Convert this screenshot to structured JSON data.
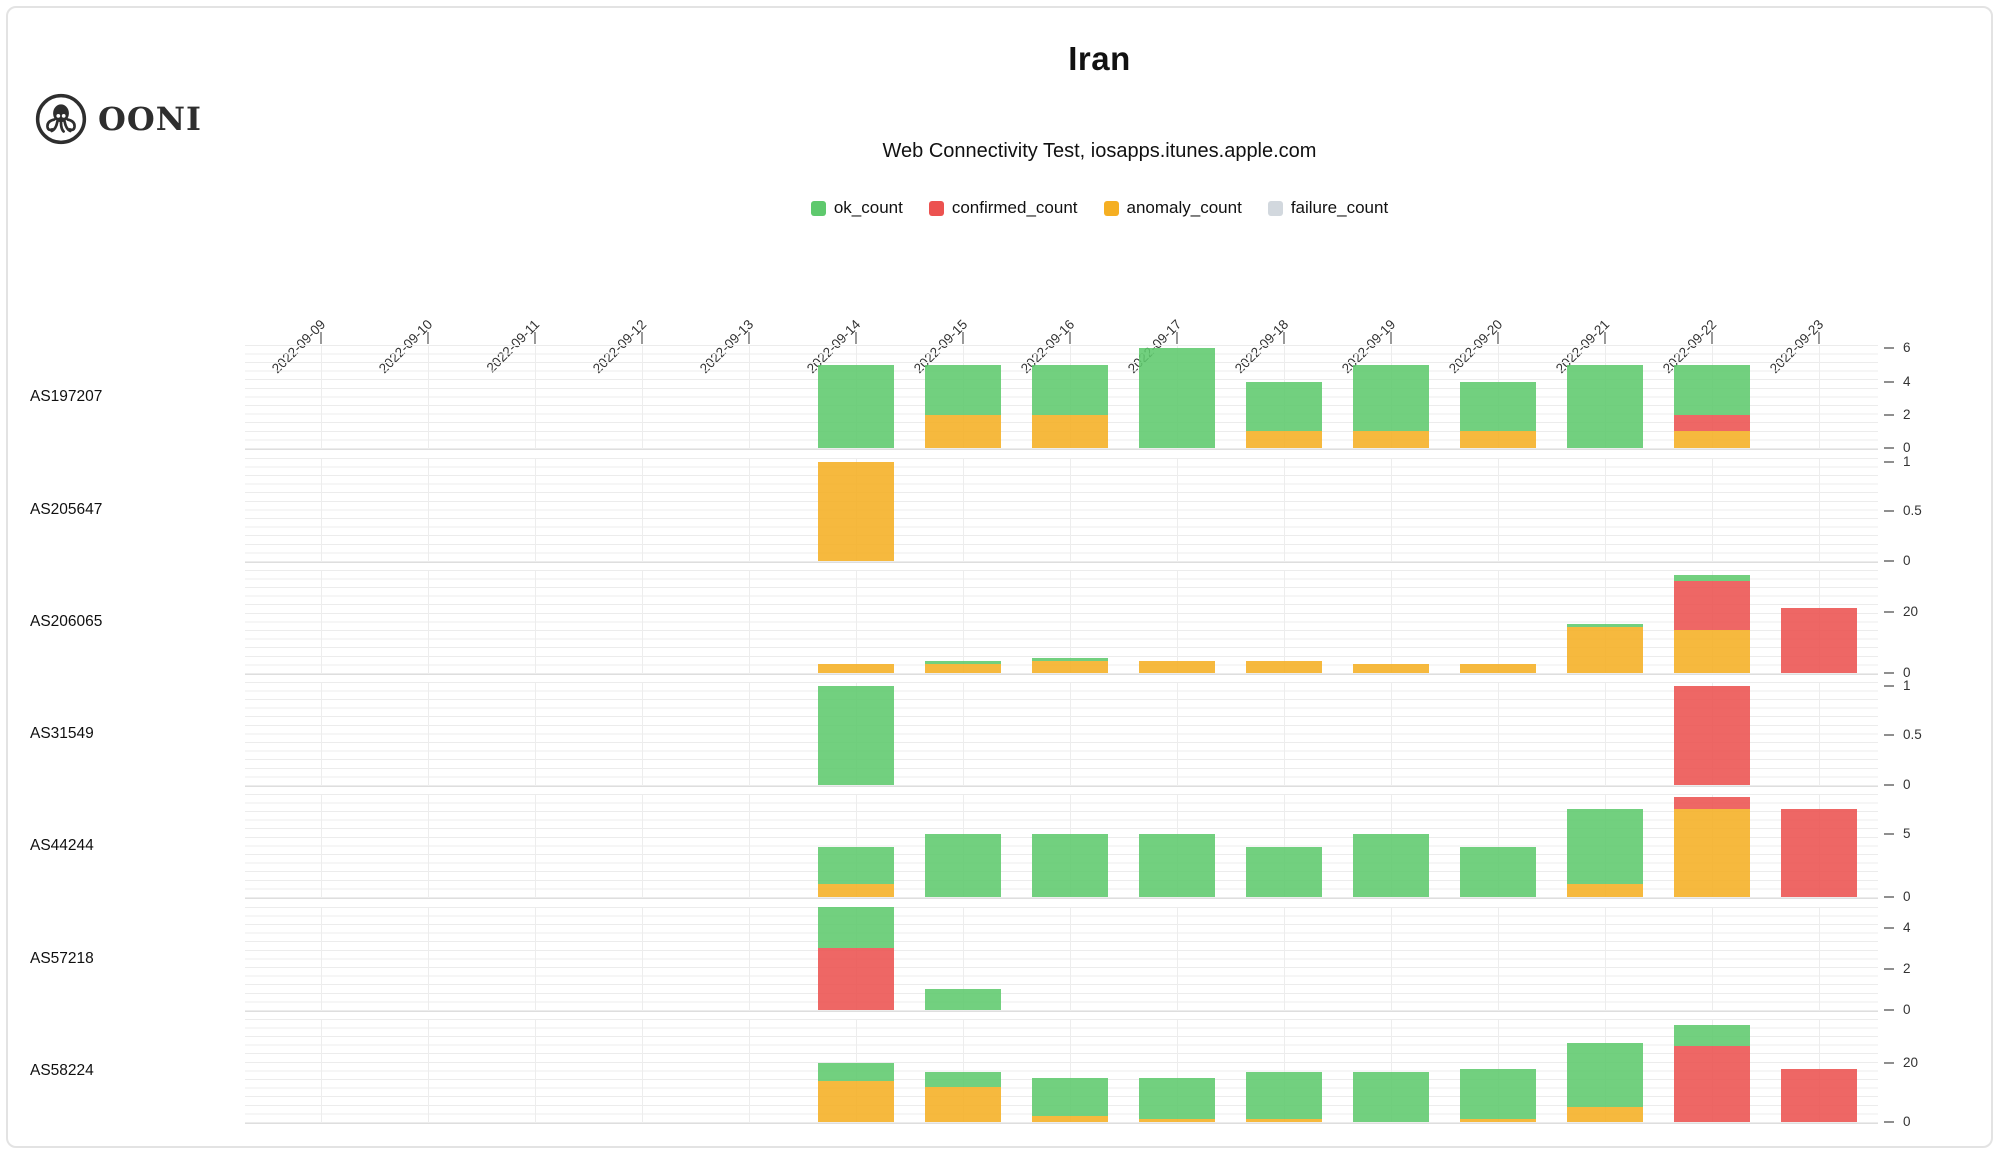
{
  "header": {
    "logo_text": "OONI",
    "title": "Iran",
    "subtitle": "Web Connectivity Test, iosapps.itunes.apple.com"
  },
  "legend": {
    "items": [
      {
        "label": "ok_count",
        "color": "#5ec96d"
      },
      {
        "label": "confirmed_count",
        "color": "#ec5250"
      },
      {
        "label": "anomaly_count",
        "color": "#f5af23"
      },
      {
        "label": "failure_count",
        "color": "#d2d8de"
      }
    ]
  },
  "chart_data": {
    "type": "bar",
    "stacked": true,
    "stack_order_bottom_to_top": [
      "anomaly",
      "confirmed",
      "ok",
      "failure"
    ],
    "title": "Iran",
    "subtitle": "Web Connectivity Test, iosapps.itunes.apple.com",
    "grid": true,
    "legend_position": "top-center",
    "colors": {
      "ok": "#5ec96d",
      "confirmed": "#ec5250",
      "anomaly": "#f5af23",
      "failure": "#d2d8de"
    },
    "x": [
      "2022-09-09",
      "2022-09-10",
      "2022-09-11",
      "2022-09-12",
      "2022-09-13",
      "2022-09-14",
      "2022-09-15",
      "2022-09-16",
      "2022-09-17",
      "2022-09-18",
      "2022-09-19",
      "2022-09-20",
      "2022-09-21",
      "2022-09-22",
      "2022-09-23"
    ],
    "rows": [
      {
        "label": "AS197207",
        "axis_ticks": [
          0,
          2,
          4,
          6
        ],
        "axis_max": 6.2,
        "bars": {
          "2022-09-14": {
            "ok": 5
          },
          "2022-09-15": {
            "anomaly": 2,
            "ok": 3
          },
          "2022-09-16": {
            "anomaly": 2,
            "ok": 3
          },
          "2022-09-17": {
            "ok": 6
          },
          "2022-09-18": {
            "anomaly": 1,
            "ok": 3
          },
          "2022-09-19": {
            "anomaly": 1,
            "ok": 4
          },
          "2022-09-20": {
            "anomaly": 1,
            "ok": 3
          },
          "2022-09-21": {
            "ok": 5
          },
          "2022-09-22": {
            "anomaly": 1,
            "confirmed": 1,
            "ok": 3
          }
        }
      },
      {
        "label": "AS205647",
        "axis_ticks": [
          0,
          0.5,
          1
        ],
        "axis_max": 1.04,
        "bars": {
          "2022-09-14": {
            "anomaly": 1
          }
        }
      },
      {
        "label": "AS206065",
        "axis_ticks": [
          0,
          20
        ],
        "axis_max": 33.5,
        "bars": {
          "2022-09-14": {
            "anomaly": 3
          },
          "2022-09-15": {
            "anomaly": 3,
            "ok": 1
          },
          "2022-09-16": {
            "anomaly": 4,
            "ok": 1
          },
          "2022-09-17": {
            "anomaly": 4
          },
          "2022-09-18": {
            "anomaly": 4
          },
          "2022-09-19": {
            "anomaly": 3
          },
          "2022-09-20": {
            "anomaly": 3
          },
          "2022-09-21": {
            "anomaly": 15,
            "ok": 1
          },
          "2022-09-22": {
            "anomaly": 14,
            "confirmed": 16,
            "ok": 2
          },
          "2022-09-23": {
            "confirmed": 21
          }
        }
      },
      {
        "label": "AS31549",
        "axis_ticks": [
          0,
          0.5,
          1
        ],
        "axis_max": 1.04,
        "bars": {
          "2022-09-14": {
            "ok": 1
          },
          "2022-09-22": {
            "confirmed": 1
          }
        }
      },
      {
        "label": "AS44244",
        "axis_ticks": [
          0,
          5
        ],
        "axis_max": 8.2,
        "bars": {
          "2022-09-14": {
            "anomaly": 1,
            "ok": 3
          },
          "2022-09-15": {
            "ok": 5
          },
          "2022-09-16": {
            "ok": 5
          },
          "2022-09-17": {
            "ok": 5
          },
          "2022-09-18": {
            "ok": 4
          },
          "2022-09-19": {
            "ok": 5
          },
          "2022-09-20": {
            "ok": 4
          },
          "2022-09-21": {
            "anomaly": 1,
            "ok": 6
          },
          "2022-09-22": {
            "anomaly": 7,
            "confirmed": 1
          },
          "2022-09-23": {
            "confirmed": 7
          }
        }
      },
      {
        "label": "AS57218",
        "axis_ticks": [
          0,
          2,
          4
        ],
        "axis_max": 5.0,
        "bars": {
          "2022-09-14": {
            "confirmed": 3,
            "ok": 2
          },
          "2022-09-15": {
            "ok": 1
          }
        }
      },
      {
        "label": "AS58224",
        "axis_ticks": [
          0,
          20
        ],
        "axis_max": 35,
        "bars": {
          "2022-09-14": {
            "anomaly": 14,
            "ok": 6
          },
          "2022-09-15": {
            "anomaly": 12,
            "ok": 5
          },
          "2022-09-16": {
            "anomaly": 2,
            "ok": 13
          },
          "2022-09-17": {
            "anomaly": 1,
            "ok": 14
          },
          "2022-09-18": {
            "anomaly": 1,
            "ok": 16
          },
          "2022-09-19": {
            "ok": 17
          },
          "2022-09-20": {
            "anomaly": 1,
            "ok": 17
          },
          "2022-09-21": {
            "anomaly": 5,
            "ok": 22
          },
          "2022-09-22": {
            "confirmed": 26,
            "ok": 7
          },
          "2022-09-23": {
            "confirmed": 18
          }
        }
      }
    ]
  }
}
